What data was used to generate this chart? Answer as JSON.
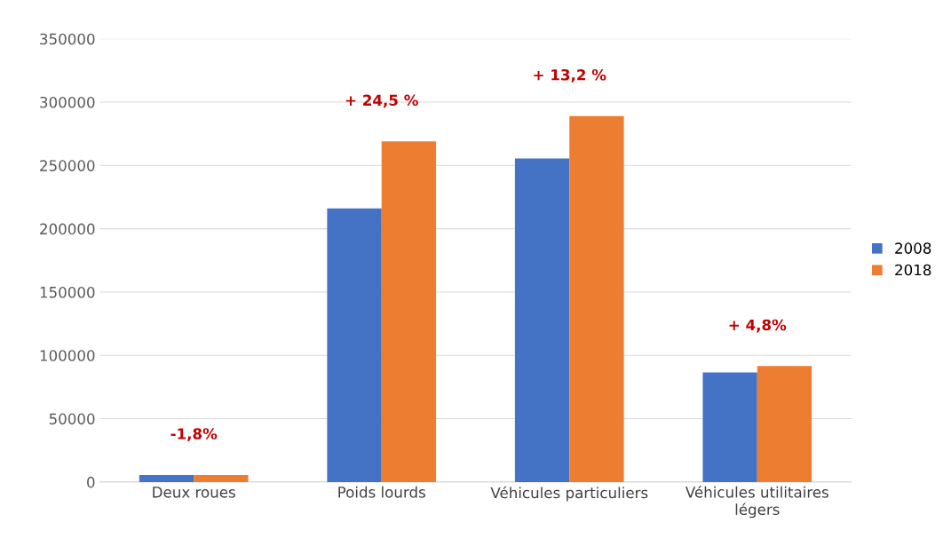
{
  "chart_data": {
    "type": "bar",
    "categories": [
      "Deux roues",
      "Poids lourds",
      "Véhicules particuliers",
      "Véhicules utilitaires\nlégers"
    ],
    "series": [
      {
        "name": "2008",
        "color": "#4472c4",
        "values": [
          5600,
          216000,
          255500,
          86500
        ]
      },
      {
        "name": "2018",
        "color": "#ed7d31",
        "values": [
          5500,
          269000,
          289000,
          91500
        ]
      }
    ],
    "ylim": [
      0,
      350000
    ],
    "yticks": [
      0,
      50000,
      100000,
      150000,
      200000,
      250000,
      300000,
      350000
    ],
    "grid": "y",
    "legend": "right",
    "annotations": [
      "-1,8%",
      "+ 24,5 %",
      "+ 13,2 %",
      "+ 4,8%"
    ]
  }
}
